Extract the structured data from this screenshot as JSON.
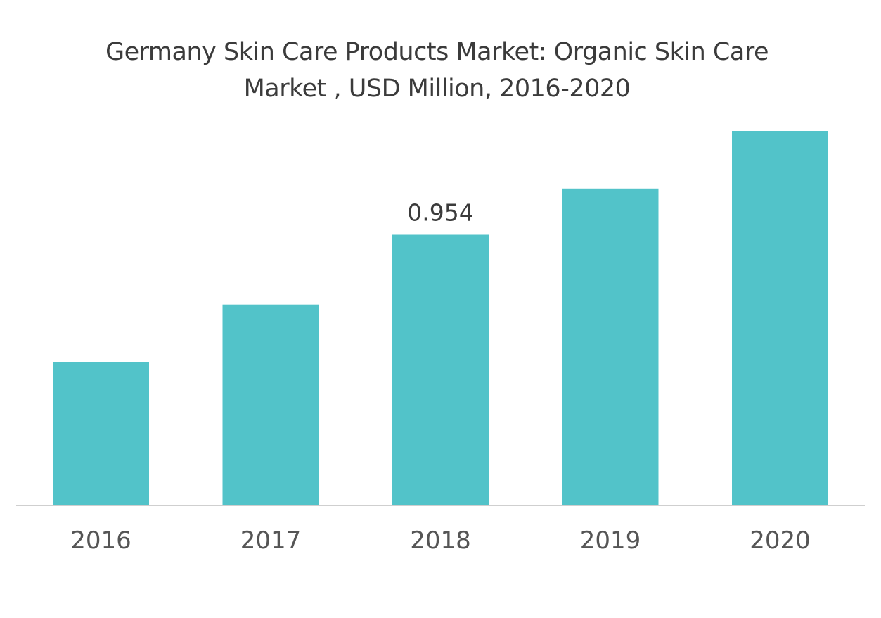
{
  "chart_data": {
    "type": "bar",
    "title": "Germany Skin Care Products Market: Organic Skin Care Market , USD Million, 2016-2020",
    "categories": [
      "2016",
      "2017",
      "2018",
      "2019",
      "2020"
    ],
    "values": [
      0.505,
      0.708,
      0.954,
      1.117,
      1.32
    ],
    "data_labels": [
      "",
      "",
      "0.954",
      "",
      ""
    ],
    "ylim": [
      0,
      1.32
    ],
    "grid": false,
    "legend": "none",
    "bar_color": "#52c3c9",
    "axis_color": "#cfcfcf"
  }
}
